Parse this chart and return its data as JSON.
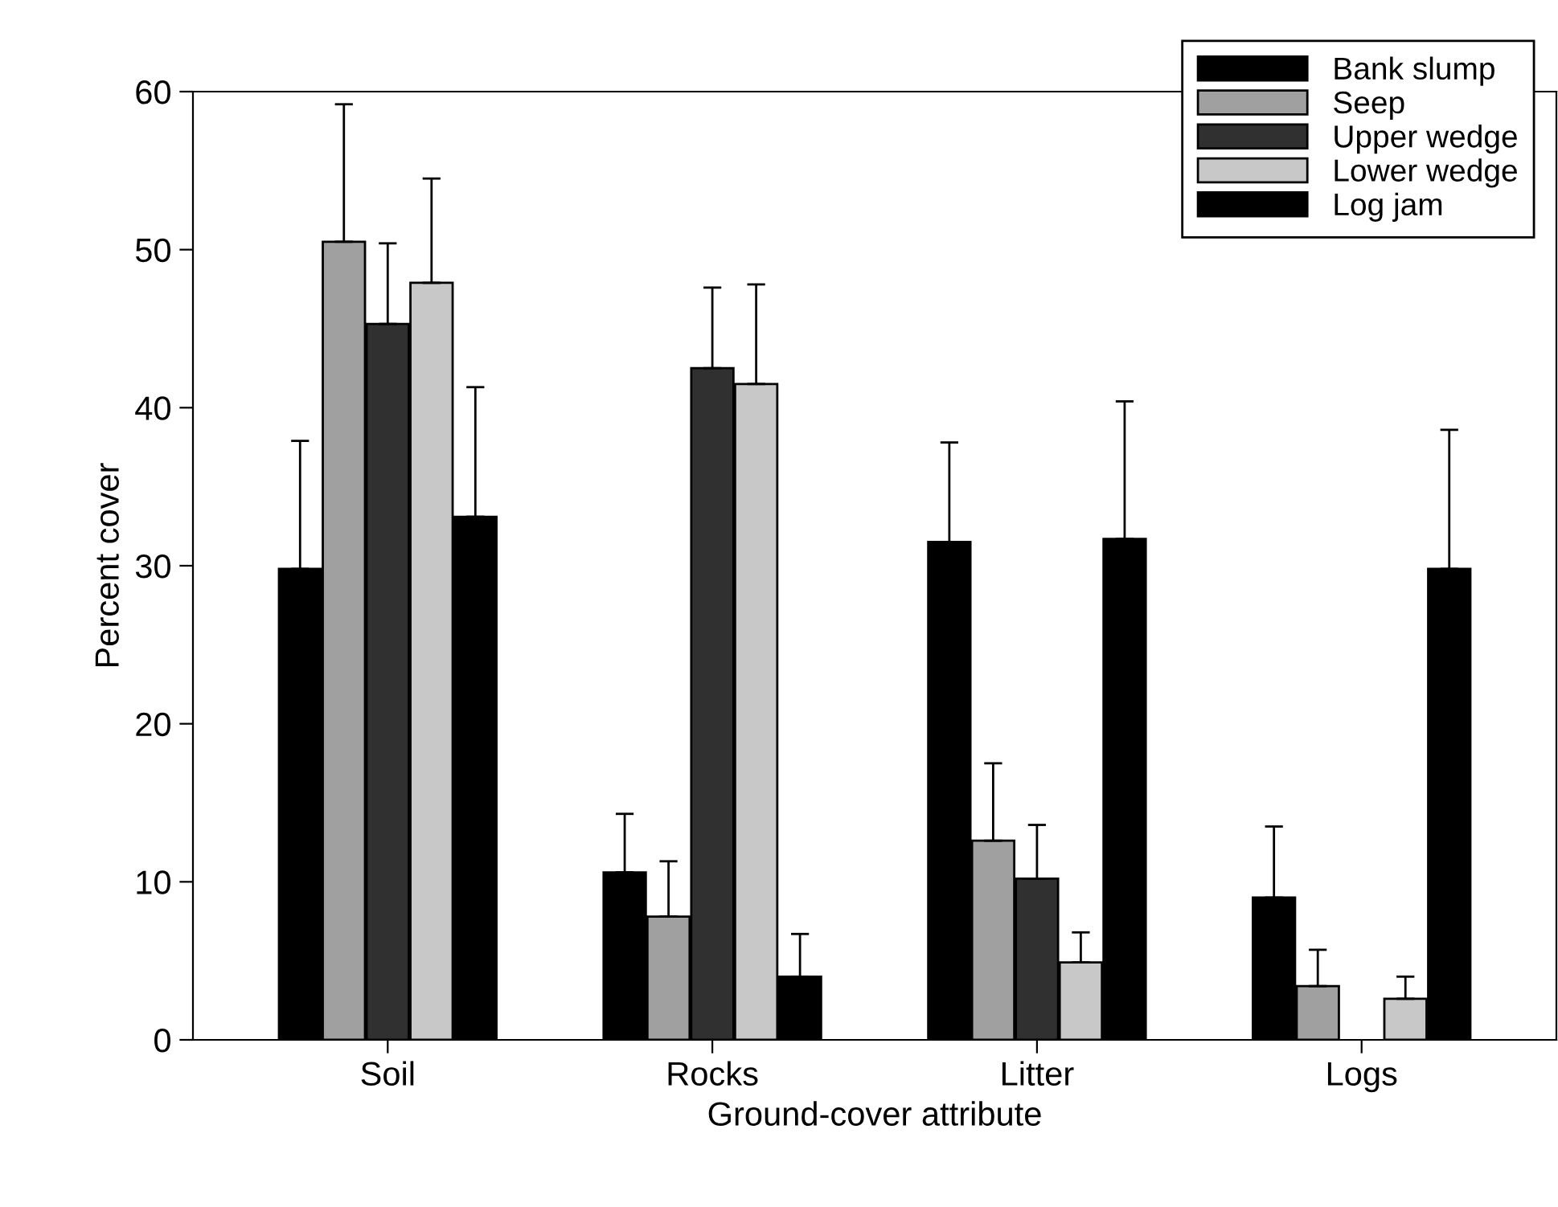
{
  "chart_data": {
    "type": "bar",
    "xlabel": "Ground-cover attribute",
    "ylabel": "Percent cover",
    "categories": [
      "Soil",
      "Rocks",
      "Litter",
      "Logs"
    ],
    "series": [
      {
        "name": "Bank slump",
        "color": "#000000",
        "values": [
          29.8,
          10.6,
          31.5,
          9.0
        ],
        "errors": [
          [
            29.8,
            37.9
          ],
          [
            10.6,
            14.3
          ],
          [
            31.5,
            37.8
          ],
          [
            9.0,
            13.5
          ]
        ]
      },
      {
        "name": "Seep",
        "color": "#a0a0a0",
        "values": [
          50.5,
          7.8,
          12.6,
          3.4
        ],
        "errors": [
          [
            50.5,
            59.2
          ],
          [
            7.8,
            11.3
          ],
          [
            12.6,
            17.5
          ],
          [
            3.4,
            5.7
          ]
        ]
      },
      {
        "name": "Upper wedge",
        "color": "#303030",
        "values": [
          45.3,
          42.5,
          10.2,
          null
        ],
        "errors": [
          [
            45.3,
            50.4
          ],
          [
            42.5,
            47.6
          ],
          [
            10.2,
            13.6
          ],
          null
        ]
      },
      {
        "name": "Lower wedge",
        "color": "#c8c8c8",
        "values": [
          47.9,
          41.5,
          4.9,
          2.6
        ],
        "errors": [
          [
            47.9,
            54.5
          ],
          [
            41.5,
            47.8
          ],
          [
            4.9,
            6.8
          ],
          [
            2.6,
            4.0
          ]
        ]
      },
      {
        "name": "Log jam",
        "color": "#000000",
        "values": [
          33.1,
          4.0,
          31.7,
          29.8
        ],
        "errors": [
          [
            33.1,
            41.3
          ],
          [
            4.0,
            6.7
          ],
          [
            31.7,
            40.4
          ],
          [
            29.8,
            38.6
          ]
        ]
      }
    ],
    "ylim": [
      0,
      60
    ],
    "yticks": [
      0,
      10,
      20,
      30,
      40,
      50,
      60
    ],
    "grid": false,
    "legend": "top right"
  }
}
